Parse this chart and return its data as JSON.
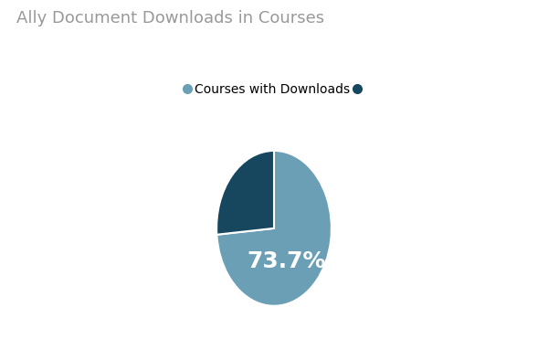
{
  "title": "Ally Document Downloads in Courses",
  "title_color": "#999999",
  "title_fontsize": 13,
  "slices": [
    73.7,
    26.3
  ],
  "colors": [
    "#6a9fb5",
    "#17475e"
  ],
  "legend_label_1": "Courses with Downloads",
  "legend_color_1": "#6a9fb5",
  "legend_color_2": "#17475e",
  "pct_label": "73.7%",
  "pct_color": "#ffffff",
  "pct_fontsize": 18,
  "background_color": "#ffffff",
  "startangle": 90
}
